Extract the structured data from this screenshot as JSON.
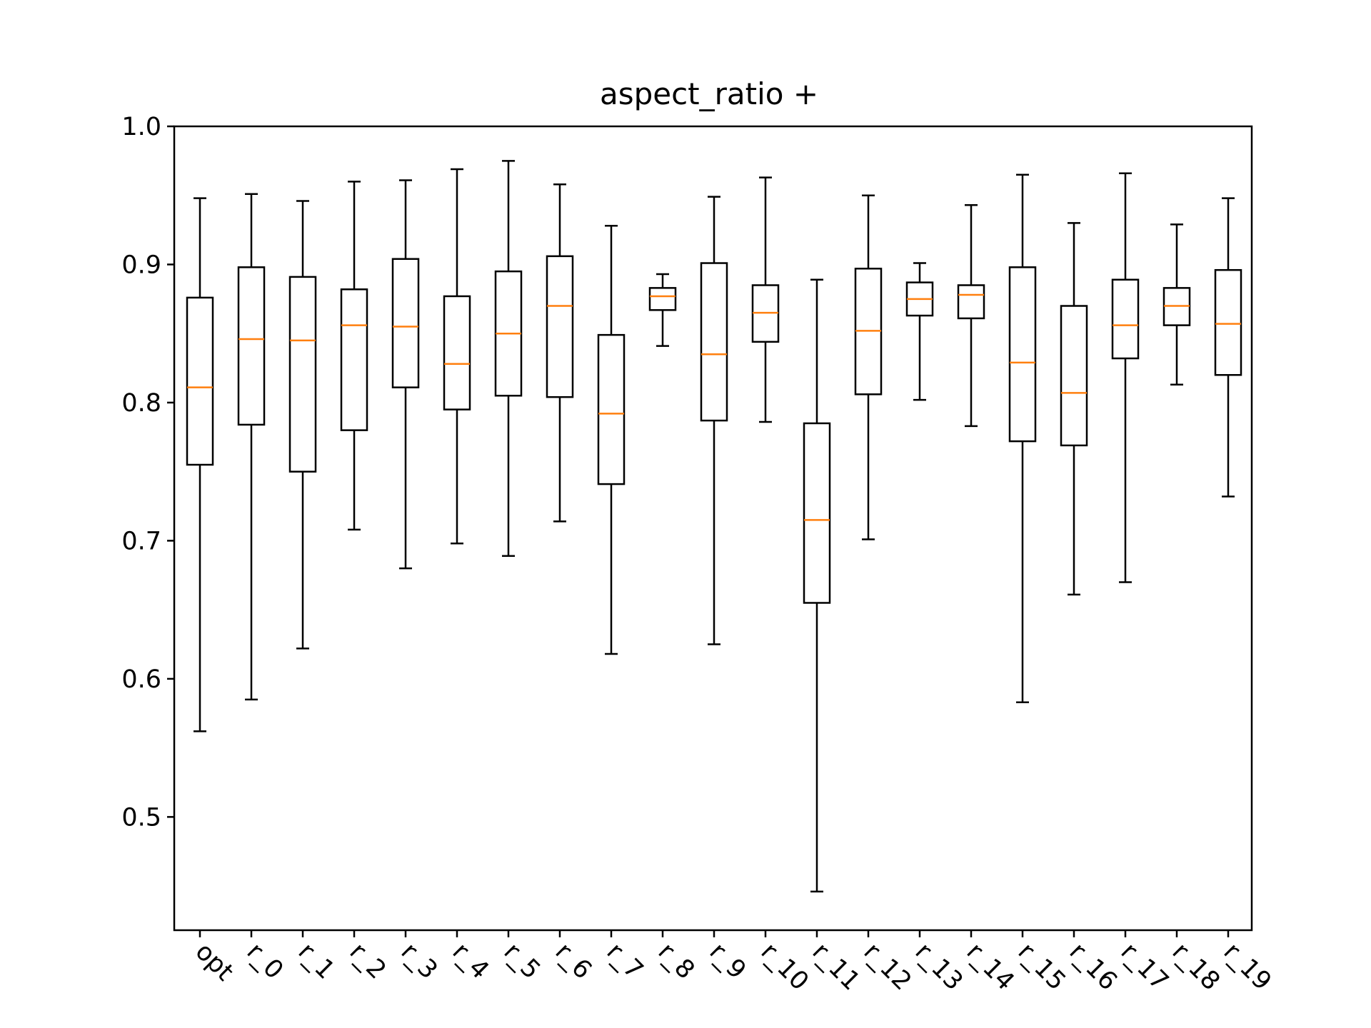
{
  "chart_data": {
    "type": "box",
    "title": "aspect_ratio +",
    "xlabel": "",
    "ylabel": "",
    "ylim": [
      0.418,
      1.0
    ],
    "y_ticks": [
      0.5,
      0.6,
      0.7,
      0.8,
      0.9,
      1.0
    ],
    "y_tick_labels": [
      "0.5",
      "0.6",
      "0.7",
      "0.8",
      "0.9",
      "1.0"
    ],
    "grid": false,
    "median_color": "#ff7f0e",
    "box_color": "#000000",
    "x_tick_rotation_deg": 45,
    "boxes": [
      {
        "label": "opt",
        "whisker_low": 0.562,
        "q1": 0.755,
        "median": 0.811,
        "q3": 0.876,
        "whisker_high": 0.948
      },
      {
        "label": "r_0",
        "whisker_low": 0.585,
        "q1": 0.784,
        "median": 0.846,
        "q3": 0.898,
        "whisker_high": 0.951
      },
      {
        "label": "r_1",
        "whisker_low": 0.622,
        "q1": 0.75,
        "median": 0.845,
        "q3": 0.891,
        "whisker_high": 0.946
      },
      {
        "label": "r_2",
        "whisker_low": 0.708,
        "q1": 0.78,
        "median": 0.856,
        "q3": 0.882,
        "whisker_high": 0.96
      },
      {
        "label": "r_3",
        "whisker_low": 0.68,
        "q1": 0.811,
        "median": 0.855,
        "q3": 0.904,
        "whisker_high": 0.961
      },
      {
        "label": "r_4",
        "whisker_low": 0.698,
        "q1": 0.795,
        "median": 0.828,
        "q3": 0.877,
        "whisker_high": 0.969
      },
      {
        "label": "r_5",
        "whisker_low": 0.689,
        "q1": 0.805,
        "median": 0.85,
        "q3": 0.895,
        "whisker_high": 0.975
      },
      {
        "label": "r_6",
        "whisker_low": 0.714,
        "q1": 0.804,
        "median": 0.87,
        "q3": 0.906,
        "whisker_high": 0.958
      },
      {
        "label": "r_7",
        "whisker_low": 0.618,
        "q1": 0.741,
        "median": 0.792,
        "q3": 0.849,
        "whisker_high": 0.928
      },
      {
        "label": "r_8",
        "whisker_low": 0.841,
        "q1": 0.867,
        "median": 0.877,
        "q3": 0.883,
        "whisker_high": 0.893
      },
      {
        "label": "r_9",
        "whisker_low": 0.625,
        "q1": 0.787,
        "median": 0.835,
        "q3": 0.901,
        "whisker_high": 0.949
      },
      {
        "label": "r_10",
        "whisker_low": 0.786,
        "q1": 0.844,
        "median": 0.865,
        "q3": 0.885,
        "whisker_high": 0.963
      },
      {
        "label": "r_11",
        "whisker_low": 0.446,
        "q1": 0.655,
        "median": 0.715,
        "q3": 0.785,
        "whisker_high": 0.889
      },
      {
        "label": "r_12",
        "whisker_low": 0.701,
        "q1": 0.806,
        "median": 0.852,
        "q3": 0.897,
        "whisker_high": 0.95
      },
      {
        "label": "r_13",
        "whisker_low": 0.802,
        "q1": 0.863,
        "median": 0.875,
        "q3": 0.887,
        "whisker_high": 0.901
      },
      {
        "label": "r_14",
        "whisker_low": 0.783,
        "q1": 0.861,
        "median": 0.878,
        "q3": 0.885,
        "whisker_high": 0.943
      },
      {
        "label": "r_15",
        "whisker_low": 0.583,
        "q1": 0.772,
        "median": 0.829,
        "q3": 0.898,
        "whisker_high": 0.965
      },
      {
        "label": "r_16",
        "whisker_low": 0.661,
        "q1": 0.769,
        "median": 0.807,
        "q3": 0.87,
        "whisker_high": 0.93
      },
      {
        "label": "r_17",
        "whisker_low": 0.67,
        "q1": 0.832,
        "median": 0.856,
        "q3": 0.889,
        "whisker_high": 0.966
      },
      {
        "label": "r_18",
        "whisker_low": 0.813,
        "q1": 0.856,
        "median": 0.87,
        "q3": 0.883,
        "whisker_high": 0.929
      },
      {
        "label": "r_19",
        "whisker_low": 0.732,
        "q1": 0.82,
        "median": 0.857,
        "q3": 0.896,
        "whisker_high": 0.948
      }
    ]
  }
}
